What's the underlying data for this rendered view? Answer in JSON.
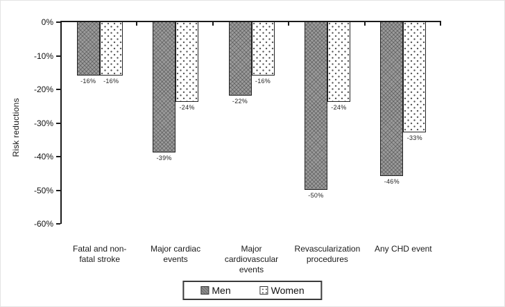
{
  "chart_data": {
    "type": "bar",
    "orientation": "vertical-negative",
    "title": "",
    "xlabel": "",
    "ylabel": "Risk reductions",
    "ylim": [
      -60,
      0
    ],
    "grid": "off",
    "axis_color": "#1a1a1a",
    "yticks": {
      "values": [
        0,
        -10,
        -20,
        -30,
        -40,
        -50,
        -60
      ],
      "labels": [
        "0%",
        "-10%",
        "-20%",
        "-30%",
        "-40%",
        "-50%",
        "-60%"
      ]
    },
    "categories": [
      {
        "label": "Fatal and non-fatal stroke",
        "lines": "Fatal and non-\nfatal stroke"
      },
      {
        "label": "Major cardiac events",
        "lines": "Major cardiac\nevents"
      },
      {
        "label": "Major cardiovascular events",
        "lines": "Major\ncardiovascular\nevents"
      },
      {
        "label": "Revascularization procedures",
        "lines": "Revascularization\nprocedures"
      },
      {
        "label": "Any CHD event",
        "lines": "Any CHD event"
      }
    ],
    "series": [
      {
        "name": "Men",
        "values": [
          -16,
          -39,
          -22,
          -50,
          -46
        ],
        "data_labels": [
          "-16%",
          "-39%",
          "-22%",
          "-50%",
          "-46%"
        ],
        "fill": "#9b9b9b",
        "pattern": "crosshatch"
      },
      {
        "name": "Women",
        "values": [
          -16,
          -24,
          -16,
          -24,
          -33
        ],
        "data_labels": [
          "-16%",
          "-24%",
          "-16%",
          "-24%",
          "-33%"
        ],
        "fill": "#ffffff",
        "pattern": "dots"
      }
    ],
    "legend": {
      "position": "bottom",
      "entries": [
        "Men",
        "Women"
      ]
    }
  }
}
